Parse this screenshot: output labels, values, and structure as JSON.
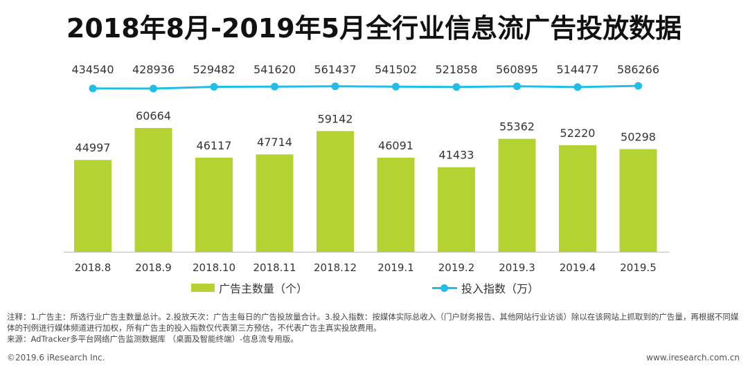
{
  "title": "2018年8月-2019年5月全行业信息流广告投放数据",
  "chart_data": {
    "type": "bar",
    "categories": [
      "2018.8",
      "2018.9",
      "2018.10",
      "2018.11",
      "2018.12",
      "2019.1",
      "2019.2",
      "2019.3",
      "2019.4",
      "2019.5"
    ],
    "series": [
      {
        "name": "广告主数量（个）",
        "type": "bar",
        "values": [
          44997,
          60664,
          46117,
          47714,
          59142,
          46091,
          41433,
          55362,
          52220,
          50298
        ]
      },
      {
        "name": "投入指数（万）",
        "type": "line",
        "values": [
          434540,
          428936,
          529482,
          541620,
          561437,
          541502,
          521858,
          560895,
          514477,
          586266
        ]
      }
    ],
    "colors": {
      "bar": "#b4d232",
      "line": "#1fbde8"
    }
  },
  "legend": {
    "bar": "广告主数量（个）",
    "line": "投入指数（万）"
  },
  "notes": {
    "line1": "注释：1.广告主：所选行业广告主数量总计。2.投放天次：广告主每日的广告投放量合计。3.投入指数：按媒体实际总收入（门户财务报告、其他网站行业访谈）除以在该网站上抓取到的广告量，再根据不同媒体的刊例进行媒体频道进行加权，所有广告主的投入指数仅代表第三方预估，不代表广告主真实投放费用。",
    "line2": "来源：AdTracker多平台网络广告监测数据库 （桌面及智能终端）-信息流专用版。"
  },
  "footer": {
    "left": "©2019.6 iResearch Inc.",
    "right": "www.iresearch.com.cn"
  }
}
